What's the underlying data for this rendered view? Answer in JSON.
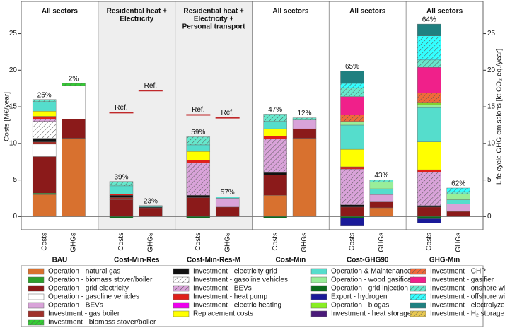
{
  "chart_data": {
    "type": "stacked-bar",
    "scenarios": [
      "BAU",
      "Cost-Min-Res",
      "Cost-Min-Res-M",
      "Cost-Min",
      "Cost-GHG90",
      "GHG-Min"
    ],
    "scope_labels": [
      [
        "All sectors"
      ],
      [
        "Residential heat +",
        "Electricity"
      ],
      [
        "Residential heat +",
        "Electricity +",
        "Personal transport"
      ],
      [
        "All sectors"
      ],
      [
        "All sectors"
      ],
      [
        "All sectors"
      ]
    ],
    "categories": [
      "Costs",
      "GHGs",
      "Costs",
      "GHGs",
      "Costs",
      "GHGs",
      "Costs",
      "GHGs",
      "Costs",
      "GHGs",
      "Costs",
      "GHGs"
    ],
    "bar_labels": [
      "25%",
      "2%",
      "39%",
      "23%",
      "59%",
      "57%",
      "47%",
      "12%",
      "65%",
      "43%",
      "64%",
      "62%"
    ],
    "ref_label": "Ref.",
    "ref_values": [
      null,
      null,
      14.2,
      17.2,
      13.9,
      13.5,
      null,
      null,
      null,
      null,
      null,
      null
    ],
    "shaded_groups": [
      1,
      2
    ],
    "ylabel": "Costs [M€/year]",
    "y2label": "Life cycle GHG-emissions [kt CO₂-eq./year]",
    "ylim": [
      -1.8,
      29.4
    ],
    "yticks": [
      0,
      5,
      10,
      15,
      20,
      25
    ],
    "y2lim": [
      -1.8,
      29.4
    ],
    "y2ticks": [
      0,
      5,
      10,
      15,
      20,
      25
    ],
    "series": [
      {
        "name": "Operation - natural gas",
        "color": "#d8712f",
        "values": [
          3.0,
          10.6,
          0,
          0,
          0,
          0,
          2.9,
          10.7,
          0,
          1.2,
          0,
          0
        ]
      },
      {
        "name": "Operation - biomass stover/boiler",
        "color": "#2ca02c",
        "values": [
          0.2,
          0.1,
          0,
          0,
          0,
          0,
          0,
          0,
          0,
          0,
          0,
          0
        ]
      },
      {
        "name": "Operation - grid electricity",
        "color": "#8b1a1a",
        "values": [
          5.0,
          2.6,
          2.3,
          1.2,
          2.6,
          1.3,
          2.8,
          1.3,
          1.3,
          0.8,
          1.3,
          0.7
        ]
      },
      {
        "name": "Operation - gasoline vehicles",
        "color": "#ffffff",
        "values": [
          1.7,
          4.6,
          0,
          0,
          0,
          0,
          0,
          0,
          0,
          0,
          0,
          0
        ]
      },
      {
        "name": "Operation - BEVs",
        "color": "#d9a3d9",
        "values": [
          0,
          0,
          0,
          0,
          0,
          1.2,
          0,
          1.2,
          0,
          1.0,
          0,
          1.0
        ]
      },
      {
        "name": "Investment - gas boiler",
        "color": "#a0302a",
        "values": [
          0.3,
          0,
          0.3,
          0,
          0,
          0,
          0,
          0,
          0,
          0,
          0,
          0
        ]
      },
      {
        "name": "Investment - biomass stover/boiler",
        "color": "#33cc33",
        "hatch": true,
        "values": [
          0,
          0.3,
          0,
          0,
          0,
          0,
          0,
          0,
          0,
          0,
          0,
          0
        ]
      },
      {
        "name": "Investment - electricity grid",
        "color": "#111111",
        "values": [
          0.5,
          0,
          0.3,
          0.1,
          0.3,
          0,
          0.3,
          0,
          0.3,
          0,
          0.2,
          0
        ]
      },
      {
        "name": "Investment - gasoline vehicles",
        "color": "#ffffff",
        "hatch": true,
        "values": [
          2.3,
          0,
          0,
          0,
          0,
          0,
          0,
          0,
          0,
          0,
          0,
          0
        ]
      },
      {
        "name": "Investment - BEVs",
        "color": "#d9a3d9",
        "hatch": true,
        "values": [
          0.3,
          0,
          0,
          0,
          4.4,
          0,
          4.6,
          0,
          4.9,
          0,
          4.6,
          0
        ]
      },
      {
        "name": "Investment - heat pump",
        "color": "#e0201a",
        "values": [
          0.4,
          0,
          0.2,
          0,
          0.4,
          0,
          0.4,
          0,
          0.3,
          0,
          0.3,
          0
        ]
      },
      {
        "name": "Investment - electric heating",
        "color": "#ee00ee",
        "values": [
          0,
          0,
          0,
          0,
          0,
          0,
          0,
          0,
          0,
          0,
          0,
          0
        ]
      },
      {
        "name": "Replacement costs",
        "color": "#ffff00",
        "values": [
          0.7,
          0,
          0,
          0,
          1.2,
          0,
          1.0,
          0,
          2.4,
          0,
          3.8,
          0
        ]
      },
      {
        "name": "Operation & Maintenance",
        "color": "#55ddcc",
        "values": [
          1.3,
          0,
          1.1,
          0.1,
          0.9,
          0.2,
          1.0,
          0,
          3.3,
          0.8,
          4.7,
          0.6
        ]
      },
      {
        "name": "Operation - wood gasification",
        "color": "#99ee99",
        "values": [
          0,
          0,
          0,
          0,
          0,
          0,
          0,
          0,
          0.5,
          0.9,
          0.4,
          0.8
        ]
      },
      {
        "name": "Operation - grid injection",
        "color": "#0b6b1b",
        "values": [
          0,
          0,
          -0.2,
          0,
          -0.2,
          0,
          -0.2,
          0,
          -0.2,
          0,
          -0.3,
          0
        ]
      },
      {
        "name": "Export - hydrogen",
        "color": "#1a1a99",
        "values": [
          0,
          0,
          0,
          0,
          0,
          0,
          0,
          0,
          -1.1,
          0,
          -0.6,
          0
        ]
      },
      {
        "name": "Operation - biogas",
        "color": "#88ee22",
        "values": [
          0,
          0,
          0,
          0,
          0,
          0,
          0,
          0,
          0,
          0,
          0.2,
          0
        ]
      },
      {
        "name": "Investment - heat storage",
        "color": "#4b1a7a",
        "values": [
          0,
          0,
          0,
          0,
          0,
          0,
          0,
          0,
          0,
          0,
          0,
          0
        ]
      },
      {
        "name": "Investment - CHP",
        "color": "#f06a3a",
        "hatch": true,
        "values": [
          0,
          0,
          0,
          0,
          0,
          0,
          0,
          0,
          0.9,
          0,
          1.4,
          0
        ]
      },
      {
        "name": "Investment - gasifier",
        "color": "#f0208a",
        "values": [
          0,
          0,
          0,
          0,
          0,
          0,
          0,
          0,
          2.5,
          0,
          3.5,
          0
        ]
      },
      {
        "name": "Investment - onshore wind",
        "color": "#66e8cc",
        "hatch": true,
        "values": [
          0.3,
          0,
          0.6,
          0.1,
          1.1,
          0,
          1.0,
          0.3,
          1.2,
          0.3,
          1.0,
          0.3
        ]
      },
      {
        "name": "Investment - offshore wind",
        "color": "#33ffff",
        "hatch": true,
        "values": [
          0,
          0,
          0,
          0,
          0,
          0,
          0,
          0,
          0.6,
          0,
          3.3,
          0.5
        ]
      },
      {
        "name": "Investment - electrolyzer",
        "color": "#1f8080",
        "values": [
          0,
          0,
          0,
          0,
          0,
          0,
          0,
          0,
          1.7,
          0,
          1.6,
          0
        ]
      },
      {
        "name": "Investment - H₂ storage",
        "color": "#e8c850",
        "hatch": true,
        "values": [
          0,
          0,
          0,
          0,
          0,
          0,
          0,
          0,
          0,
          0,
          0,
          0
        ]
      }
    ],
    "legend_columns": [
      7,
      6,
      6,
      6
    ]
  }
}
